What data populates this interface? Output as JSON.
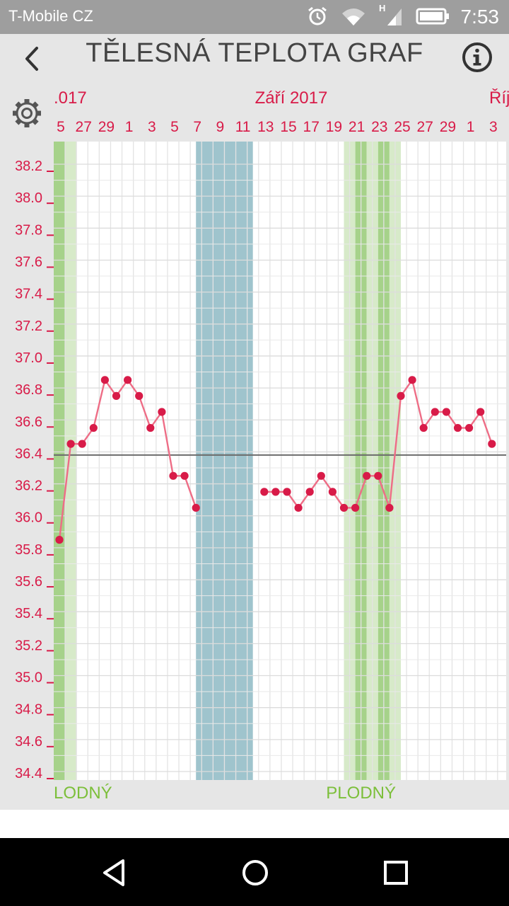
{
  "status_bar": {
    "carrier": "T-Mobile CZ",
    "time": "7:53",
    "network_label": "H",
    "icons": [
      "alarm-icon",
      "wifi-icon",
      "signal-icon",
      "battery-icon"
    ]
  },
  "app_bar": {
    "title": "TĚLESNÁ TEPLOTA GRAF",
    "back_icon": "chevron-left-icon",
    "info_icon": "info-icon"
  },
  "settings_icon": "gear-icon",
  "colors": {
    "accent": "#d81b48",
    "fertile_dark": "#a6d28a",
    "fertile_light": "#d7eac9",
    "period": "#9fc4cd",
    "fertile_text": "#7cbf3a",
    "header_bg": "#e6e6e6",
    "statusbar_bg": "#9e9e9e"
  },
  "chart_data": {
    "type": "line",
    "title": "",
    "months": [
      {
        "label": ".017",
        "align": "left"
      },
      {
        "label": "Září 2017",
        "align": "center"
      },
      {
        "label": "Říj",
        "align": "right"
      }
    ],
    "day_ticks": [
      "5",
      "27",
      "29",
      "1",
      "3",
      "5",
      "7",
      "9",
      "11",
      "13",
      "15",
      "17",
      "19",
      "21",
      "23",
      "25",
      "27",
      "29",
      "1",
      "3"
    ],
    "ylim": [
      34.4,
      38.2
    ],
    "yticks": [
      "38.2",
      "38.0",
      "37.8",
      "37.6",
      "37.4",
      "37.2",
      "37.0",
      "36.8",
      "36.6",
      "36.4",
      "36.2",
      "36.0",
      "35.8",
      "35.6",
      "35.4",
      "35.2",
      "35.0",
      "34.8",
      "34.6",
      "34.4"
    ],
    "coverline": 36.38,
    "series": [
      {
        "values": [
          35.85,
          36.45,
          36.45,
          36.55,
          36.85,
          36.75,
          36.85,
          36.75,
          36.55,
          36.65,
          36.25,
          36.25,
          36.05,
          null,
          null,
          null,
          null,
          null,
          36.15,
          36.15,
          36.15,
          36.05,
          36.15,
          36.25,
          36.15,
          36.05,
          36.05,
          36.25,
          36.25,
          36.05,
          36.75,
          36.85,
          36.55,
          36.65,
          36.65,
          36.55,
          36.55,
          36.65,
          36.45
        ]
      }
    ],
    "fertile_label": "PLODNÝ",
    "fertile_labels": [
      {
        "text": "LODNÝ",
        "day": 0
      },
      {
        "text": "PLODNÝ",
        "day": 26
      }
    ],
    "bands": [
      {
        "kind": "fertile",
        "tone": "dark",
        "from": 0,
        "to": 1
      },
      {
        "kind": "fertile",
        "tone": "light",
        "from": 1,
        "to": 2
      },
      {
        "kind": "period",
        "from": 12.5,
        "to": 17.5
      },
      {
        "kind": "fertile",
        "tone": "light",
        "from": 25.5,
        "to": 26.5
      },
      {
        "kind": "fertile",
        "tone": "dark",
        "from": 26.5,
        "to": 27.5
      },
      {
        "kind": "fertile",
        "tone": "light",
        "from": 27.5,
        "to": 28.5
      },
      {
        "kind": "fertile",
        "tone": "dark",
        "from": 28.5,
        "to": 29.5
      },
      {
        "kind": "fertile",
        "tone": "light",
        "from": 29.5,
        "to": 30.5
      }
    ],
    "grid": true
  },
  "nav_bar": {
    "back_icon": "nav-back-icon",
    "home_icon": "nav-home-icon",
    "recents_icon": "nav-recents-icon"
  }
}
